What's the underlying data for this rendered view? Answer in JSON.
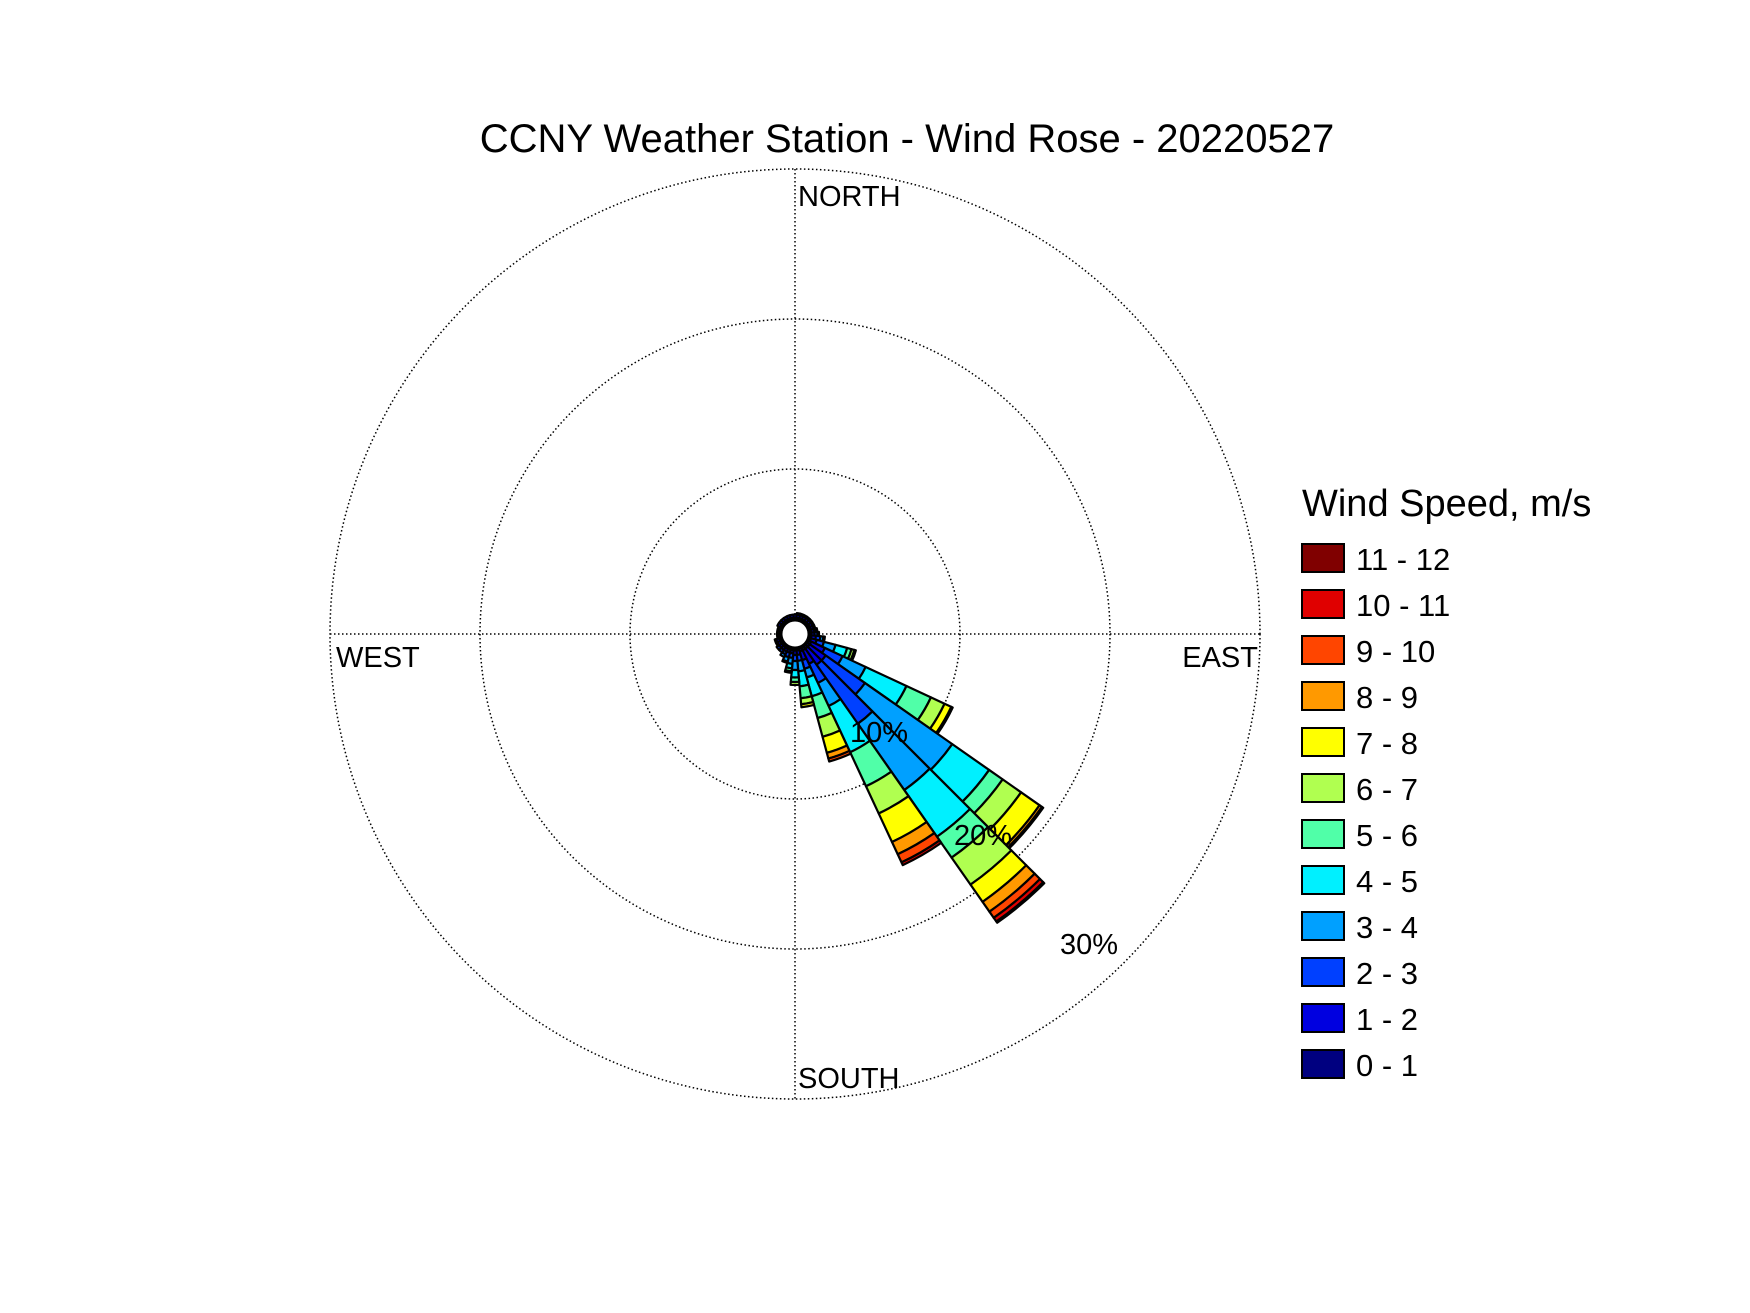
{
  "chart_data": {
    "type": "wind-rose",
    "title": "CCNY Weather Station - Wind Rose - 20220527",
    "direction_labels": {
      "north": "NORTH",
      "east": "EAST",
      "south": "SOUTH",
      "west": "WEST"
    },
    "radial_ticks": [
      10,
      20,
      30
    ],
    "radial_tick_labels": [
      "10%",
      "20%",
      "30%"
    ],
    "radial_unit": "percent frequency",
    "grid": true,
    "legend": {
      "title": "Wind Speed, m/s",
      "placement": "right",
      "entries": [
        "0 - 1",
        "1 - 2",
        "2 - 3",
        "3 - 4",
        "4 - 5",
        "5 - 6",
        "6 - 7",
        "7 - 8",
        "8 - 9",
        "9 - 10",
        "10 - 11",
        "11 - 12"
      ],
      "colors": [
        "#000080",
        "#0000e0",
        "#0040ff",
        "#00a0ff",
        "#00f0ff",
        "#50ffa8",
        "#b0ff50",
        "#ffff00",
        "#ff9900",
        "#ff4500",
        "#e00000",
        "#800000"
      ]
    },
    "direction_bin_width_deg": 10,
    "series": [
      {
        "direction": 0,
        "values": [
          0.1,
          0.2
        ]
      },
      {
        "direction": 10,
        "values": [
          0.1,
          0.2,
          0.1
        ]
      },
      {
        "direction": 20,
        "values": [
          0.1,
          0.2,
          0.1
        ]
      },
      {
        "direction": 30,
        "values": [
          0.1,
          0.2,
          0.1
        ]
      },
      {
        "direction": 40,
        "values": [
          0.1,
          0.2,
          0.1
        ]
      },
      {
        "direction": 50,
        "values": [
          0.1,
          0.2,
          0.1
        ]
      },
      {
        "direction": 60,
        "values": [
          0.1,
          0.2,
          0.1
        ]
      },
      {
        "direction": 70,
        "values": [
          0.1,
          0.2,
          0.1
        ]
      },
      {
        "direction": 80,
        "values": [
          0.1,
          0.2,
          0.1,
          0.1
        ]
      },
      {
        "direction": 90,
        "values": [
          0.1,
          0.2,
          0.2,
          0.1
        ]
      },
      {
        "direction": 100,
        "values": [
          0.1,
          0.3,
          0.3,
          0.2,
          0.1
        ]
      },
      {
        "direction": 110,
        "values": [
          0.1,
          0.4,
          0.5,
          0.8,
          0.8,
          0.3,
          0.2,
          0.1
        ]
      },
      {
        "direction": 120,
        "values": [
          0.2,
          1.0,
          1.3,
          1.7,
          3.0,
          1.8,
          1.0,
          0.5,
          0.1
        ]
      },
      {
        "direction": 130,
        "values": [
          0.2,
          1.3,
          3.2,
          7.1,
          3.0,
          1.1,
          1.5,
          1.5,
          0.2,
          0.1
        ]
      },
      {
        "direction": 140,
        "values": [
          0.2,
          1.3,
          4.8,
          5.4,
          3.8,
          1.7,
          2.2,
          1.4,
          0.8,
          0.5,
          0.3,
          0.1
        ]
      },
      {
        "direction": 150,
        "values": [
          0.2,
          1.0,
          1.4,
          1.7,
          3.4,
          2.5,
          2.0,
          2.1,
          0.9,
          0.6,
          0.2
        ]
      },
      {
        "direction": 160,
        "values": [
          0.2,
          0.6,
          0.6,
          0.6,
          1.3,
          1.5,
          1.3,
          1.1,
          0.4,
          0.2
        ]
      },
      {
        "direction": 170,
        "values": [
          0.1,
          0.3,
          0.4,
          0.7,
          1.0,
          0.8,
          0.4,
          0.2
        ]
      },
      {
        "direction": 180,
        "values": [
          0.1,
          0.3,
          0.4,
          0.6,
          0.5,
          0.3,
          0.2
        ]
      },
      {
        "direction": 190,
        "values": [
          0.1,
          0.2,
          0.3,
          0.4,
          0.3,
          0.2,
          0.1
        ]
      },
      {
        "direction": 200,
        "values": [
          0.1,
          0.2,
          0.3,
          0.3,
          0.1
        ]
      },
      {
        "direction": 210,
        "values": [
          0.1,
          0.2,
          0.2,
          0.2
        ]
      },
      {
        "direction": 220,
        "values": [
          0.1,
          0.2,
          0.2
        ]
      },
      {
        "direction": 230,
        "values": [
          0.1,
          0.2,
          0.2
        ]
      },
      {
        "direction": 240,
        "values": [
          0.1,
          0.2,
          0.1
        ]
      },
      {
        "direction": 250,
        "values": [
          0.1,
          0.2,
          0.1
        ]
      },
      {
        "direction": 260,
        "values": [
          0.1,
          0.1
        ]
      },
      {
        "direction": 270,
        "values": [
          0.1,
          0.1
        ]
      },
      {
        "direction": 280,
        "values": [
          0.1,
          0.1
        ]
      },
      {
        "direction": 290,
        "values": [
          0.1,
          0.1
        ]
      },
      {
        "direction": 300,
        "values": [
          0.1,
          0.2
        ]
      },
      {
        "direction": 310,
        "values": [
          0.1,
          0.2
        ]
      },
      {
        "direction": 320,
        "values": [
          0.1,
          0.2
        ]
      },
      {
        "direction": 330,
        "values": [
          0.1,
          0.2
        ]
      },
      {
        "direction": 340,
        "values": [
          0.1,
          0.2
        ]
      },
      {
        "direction": 350,
        "values": [
          0.1,
          0.2
        ]
      }
    ]
  }
}
